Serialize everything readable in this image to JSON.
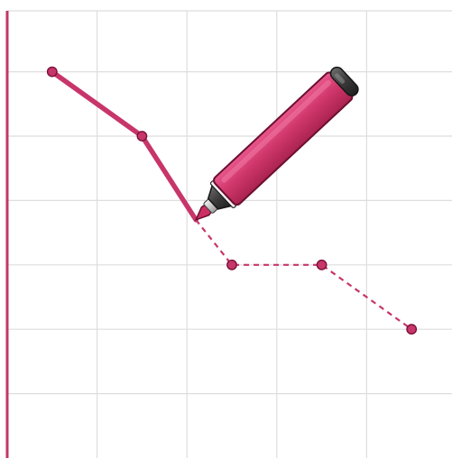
{
  "colors": {
    "accent": "#c7356a",
    "accent_dark": "#7a1238",
    "grid": "#dedede",
    "marker_cap": "#3a3a3a"
  },
  "icons": {
    "marker": "marker-pen-icon"
  },
  "chart_data": {
    "type": "line",
    "grid": true,
    "xlim": [
      0,
      5
    ],
    "ylim": [
      0,
      7
    ],
    "drawn_points": [
      {
        "x": 0.5,
        "y": 6
      },
      {
        "x": 1.5,
        "y": 5
      },
      {
        "x": 2.1,
        "y": 3.7
      }
    ],
    "guide_points": [
      {
        "x": 2.5,
        "y": 3
      },
      {
        "x": 3.5,
        "y": 3
      },
      {
        "x": 4.5,
        "y": 2
      }
    ]
  }
}
